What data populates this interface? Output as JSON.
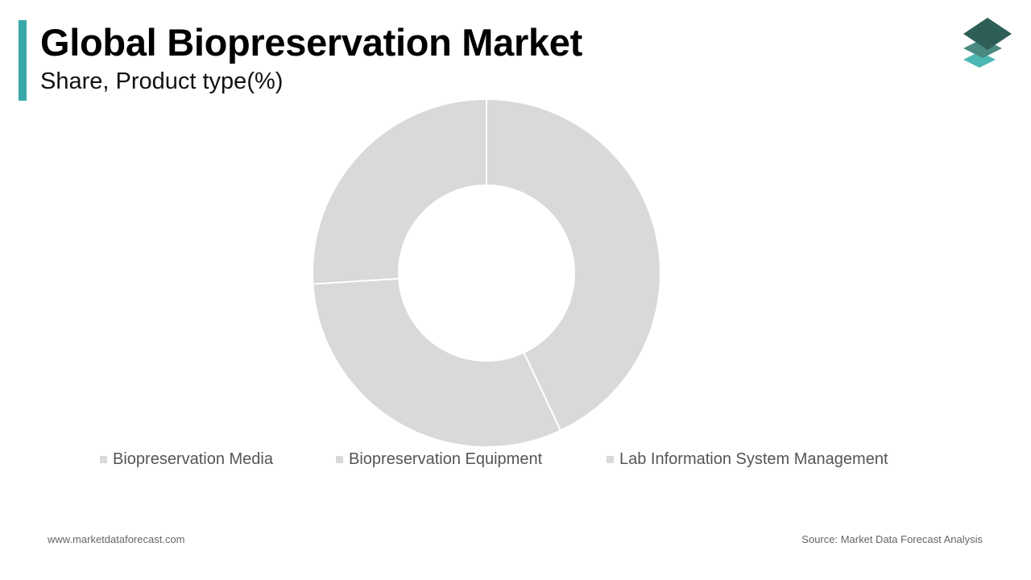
{
  "header": {
    "title": "Global Biopreservation Market",
    "subtitle": "Share, Product type(%)"
  },
  "colors": {
    "accent": "#3aa8a8",
    "slice_fill": "#d9d9d9",
    "slice_border": "#ffffff",
    "legend_swatch": "#d9d9d9",
    "logo_top": "#2e5e58",
    "logo_middle": "#4a8a82",
    "logo_bottom": "#4db8b3"
  },
  "chart_data": {
    "type": "pie",
    "categories": [
      "Biopreservation Media",
      "Biopreservation Equipment",
      "Lab Information System Management"
    ],
    "values": [
      43,
      31,
      26
    ],
    "title": "Global Biopreservation Market",
    "subtitle": "Share, Product type(%)",
    "legend_position": "bottom",
    "donut": true
  },
  "footer": {
    "website": "www.marketdataforecast.com",
    "source": "Source: Market Data Forecast Analysis"
  }
}
